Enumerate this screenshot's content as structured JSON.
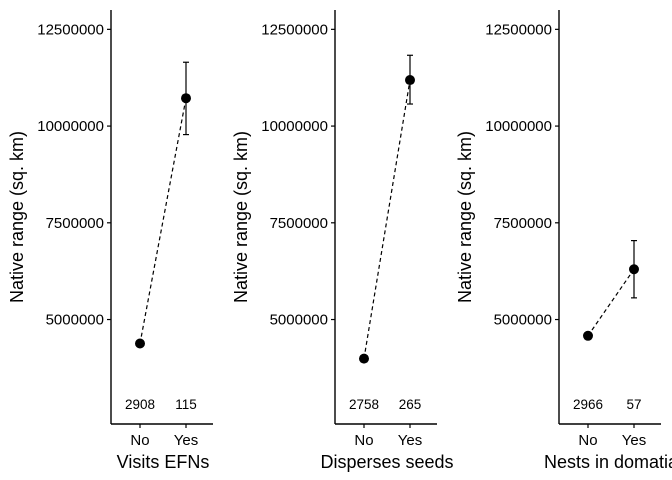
{
  "chart_data": [
    {
      "type": "scatter",
      "xlabel": "Visits EFNs",
      "ylabel": "Native range (sq. km)",
      "categories": [
        "No",
        "Yes"
      ],
      "values": [
        4380000,
        10720000
      ],
      "error_low": [
        4380000,
        9780000
      ],
      "error_high": [
        4380000,
        11650000
      ],
      "n_labels": [
        "2908",
        "115"
      ],
      "yticks": [
        5000000,
        7500000,
        10000000,
        12500000
      ],
      "ytick_labels": [
        "5000000",
        "7500000",
        "10000000",
        "12500000"
      ],
      "ylim": [
        2300000,
        13000000
      ],
      "connector": "dashed",
      "grid": false
    },
    {
      "type": "scatter",
      "xlabel": "Disperses seeds",
      "ylabel": "Native range (sq. km)",
      "categories": [
        "No",
        "Yes"
      ],
      "values": [
        3990000,
        11190000
      ],
      "error_low": [
        3990000,
        10570000
      ],
      "error_high": [
        3990000,
        11830000
      ],
      "n_labels": [
        "2758",
        "265"
      ],
      "yticks": [
        5000000,
        7500000,
        10000000,
        12500000
      ],
      "ytick_labels": [
        "5000000",
        "7500000",
        "10000000",
        "12500000"
      ],
      "ylim": [
        2300000,
        13000000
      ],
      "connector": "dashed",
      "grid": false
    },
    {
      "type": "scatter",
      "xlabel": "Nests in domatia",
      "ylabel": "Native range (sq. km)",
      "categories": [
        "No",
        "Yes"
      ],
      "values": [
        4580000,
        6300000
      ],
      "error_low": [
        4580000,
        5560000
      ],
      "error_high": [
        4580000,
        7040000
      ],
      "n_labels": [
        "2966",
        "57"
      ],
      "yticks": [
        5000000,
        7500000,
        10000000,
        12500000
      ],
      "ytick_labels": [
        "5000000",
        "7500000",
        "10000000",
        "12500000"
      ],
      "ylim": [
        2300000,
        13000000
      ],
      "connector": "dashed",
      "grid": false
    }
  ]
}
